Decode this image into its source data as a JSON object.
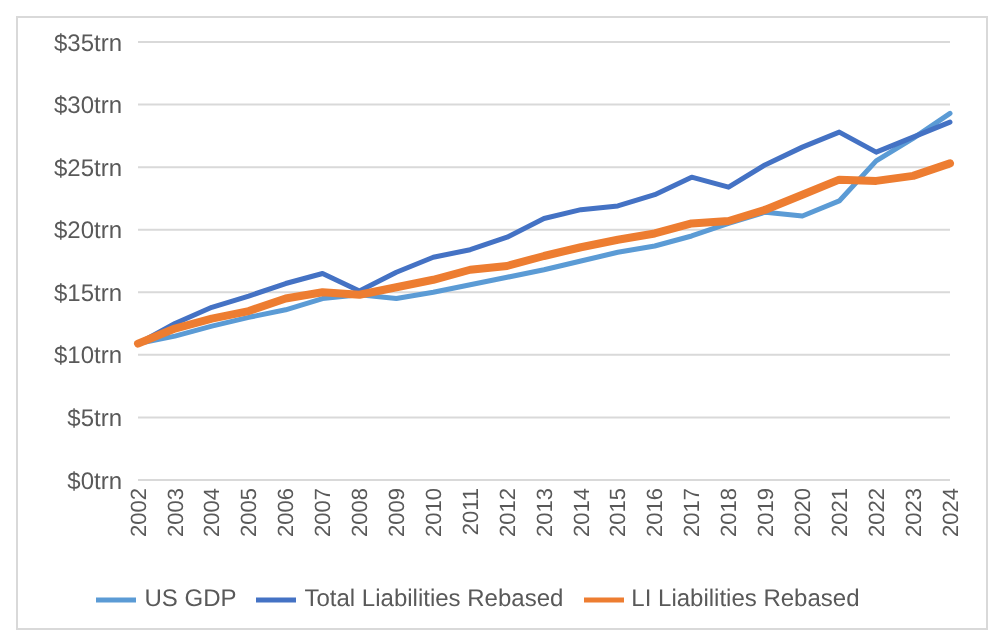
{
  "chart_data": {
    "type": "line",
    "categories": [
      "2002",
      "2003",
      "2004",
      "2005",
      "2006",
      "2007",
      "2008",
      "2009",
      "2010",
      "2011",
      "2012",
      "2013",
      "2014",
      "2015",
      "2016",
      "2017",
      "2018",
      "2019",
      "2020",
      "2021",
      "2022",
      "2023",
      "2024"
    ],
    "series": [
      {
        "name": "US GDP",
        "color": "#5b9bd5",
        "values": [
          10.9,
          11.5,
          12.3,
          13.0,
          13.6,
          14.5,
          14.8,
          14.5,
          15.0,
          15.6,
          16.2,
          16.8,
          17.5,
          18.2,
          18.7,
          19.5,
          20.5,
          21.4,
          21.1,
          22.3,
          25.5,
          27.3,
          29.3
        ]
      },
      {
        "name": "Total Liabilities Rebased",
        "color": "#4472c4",
        "values": [
          10.9,
          12.5,
          13.8,
          14.7,
          15.7,
          16.5,
          15.1,
          16.6,
          17.8,
          18.4,
          19.4,
          20.9,
          21.6,
          21.9,
          22.8,
          24.2,
          23.4,
          25.2,
          26.6,
          27.8,
          26.2,
          27.4,
          28.6
        ]
      },
      {
        "name": "LI Liabilities Rebased",
        "color": "#ed7d31",
        "values": [
          10.9,
          12.1,
          12.9,
          13.5,
          14.5,
          15.0,
          14.8,
          15.4,
          16.0,
          16.8,
          17.1,
          17.9,
          18.6,
          19.2,
          19.7,
          20.5,
          20.7,
          21.6,
          22.8,
          24.0,
          23.9,
          24.3,
          25.3
        ]
      }
    ],
    "ylim": [
      0,
      35
    ],
    "yticks": [
      {
        "value": 0,
        "label": "$0trn"
      },
      {
        "value": 5,
        "label": "$5trn"
      },
      {
        "value": 10,
        "label": "$10trn"
      },
      {
        "value": 15,
        "label": "$15trn"
      },
      {
        "value": 20,
        "label": "$20trn"
      },
      {
        "value": 25,
        "label": "$25trn"
      },
      {
        "value": 30,
        "label": "$30trn"
      },
      {
        "value": 35,
        "label": "$35trn"
      }
    ],
    "grid": "y",
    "legend": "bottom",
    "marker": "none",
    "line_style": "solid"
  }
}
